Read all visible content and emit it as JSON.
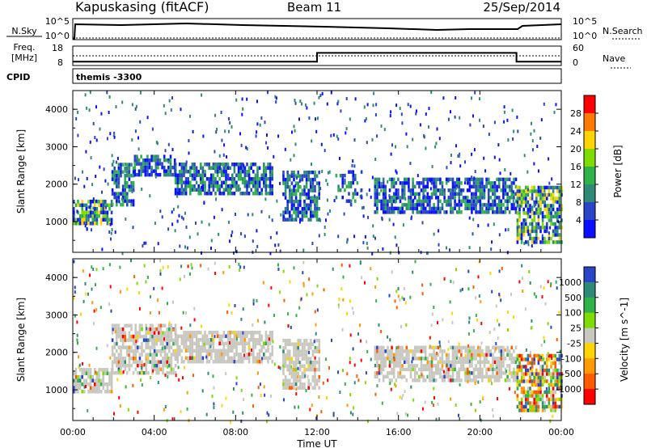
{
  "header": {
    "station": "Kapuskasing (fitACF)",
    "beam": "Beam 11",
    "date": "25/Sep/2014"
  },
  "strips": {
    "nsky_label": "N.Sky",
    "nsky_ticks": [
      "10^5",
      "10^0"
    ],
    "nsearch_label": "N.Search",
    "nsearch_ticks": [
      "10^5",
      "10^0"
    ],
    "freq_label": "Freq.",
    "freq_unit": "[MHz]",
    "freq_ticks": [
      "18",
      "8"
    ],
    "nave_label": "Nave",
    "nave_ticks": [
      "60",
      "0"
    ],
    "cpid_label": "CPID",
    "cpid_value": "themis  -3300"
  },
  "chart_data": [
    {
      "type": "heatmap",
      "name": "power",
      "ylabel": "Slant Range [km]",
      "ylim": [
        180,
        4500
      ],
      "yticks": [
        1000,
        2000,
        3000,
        4000
      ],
      "xlim": [
        0,
        24
      ],
      "colorbar": {
        "label": "Power [dB]",
        "ticks": [
          "28",
          "24",
          "20",
          "16",
          "12",
          "8",
          "4"
        ],
        "colors": [
          "#ff0000",
          "#ff7a00",
          "#ffd400",
          "#7fdc00",
          "#2fb24a",
          "#2f8a78",
          "#2a45c8",
          "#0a10ff"
        ]
      },
      "features": [
        {
          "t0": 0.0,
          "t1": 1.9,
          "r0": 1000,
          "r1": 1600,
          "level": "high"
        },
        {
          "t0": 1.9,
          "t1": 3.0,
          "r0": 1500,
          "r1": 2600,
          "level": "mid"
        },
        {
          "t0": 3.0,
          "t1": 5.0,
          "r0": 2300,
          "r1": 2800,
          "level": "mid"
        },
        {
          "t0": 5.0,
          "t1": 9.8,
          "r0": 1800,
          "r1": 2600,
          "level": "mid"
        },
        {
          "t0": 10.3,
          "t1": 12.1,
          "r0": 1100,
          "r1": 2400,
          "level": "mid"
        },
        {
          "t0": 12.9,
          "t1": 14.2,
          "r0": 1500,
          "r1": 2400,
          "level": "low"
        },
        {
          "t0": 14.8,
          "t1": 21.8,
          "r0": 1300,
          "r1": 2200,
          "level": "mid"
        },
        {
          "t0": 21.8,
          "t1": 24.0,
          "r0": 500,
          "r1": 2000,
          "level": "high"
        }
      ]
    },
    {
      "type": "heatmap",
      "name": "velocity",
      "ylabel": "Slant Range [km]",
      "ylim": [
        180,
        4500
      ],
      "yticks": [
        1000,
        2000,
        3000,
        4000
      ],
      "xlim": [
        0,
        24
      ],
      "colorbar": {
        "label": "Velocity [m s^-1]",
        "ticks": [
          "1000",
          "500",
          "100",
          "25",
          "-25",
          "-100",
          "-500",
          "-1000"
        ],
        "colors": [
          "#2a45c8",
          "#2f8a78",
          "#2fb24a",
          "#7fdc00",
          "#c8c8c0",
          "#ffd400",
          "#ff9a00",
          "#ff5a00",
          "#ff0000"
        ]
      },
      "features": [
        {
          "t0": 0.0,
          "t1": 1.9,
          "r0": 1000,
          "r1": 1600,
          "level": "ground"
        },
        {
          "t0": 1.9,
          "t1": 5.0,
          "r0": 1500,
          "r1": 2800,
          "level": "ground"
        },
        {
          "t0": 5.0,
          "t1": 9.8,
          "r0": 1800,
          "r1": 2600,
          "level": "ground"
        },
        {
          "t0": 10.3,
          "t1": 12.1,
          "r0": 1100,
          "r1": 2400,
          "level": "ground"
        },
        {
          "t0": 14.8,
          "t1": 21.8,
          "r0": 1300,
          "r1": 2200,
          "level": "ground"
        },
        {
          "t0": 21.8,
          "t1": 24.0,
          "r0": 500,
          "r1": 2000,
          "level": "mixed"
        }
      ]
    }
  ],
  "time_axis": {
    "ticks": [
      "00:00",
      "04:00",
      "08:00",
      "12:00",
      "16:00",
      "20:00",
      "00:00"
    ],
    "label": "Time UT"
  },
  "freq_series": {
    "steps": [
      {
        "t0": 0.0,
        "t1": 12.0,
        "mhz": 10
      },
      {
        "t0": 12.0,
        "t1": 21.8,
        "mhz": 14.5
      },
      {
        "t0": 21.8,
        "t1": 24.0,
        "mhz": 10
      }
    ]
  }
}
